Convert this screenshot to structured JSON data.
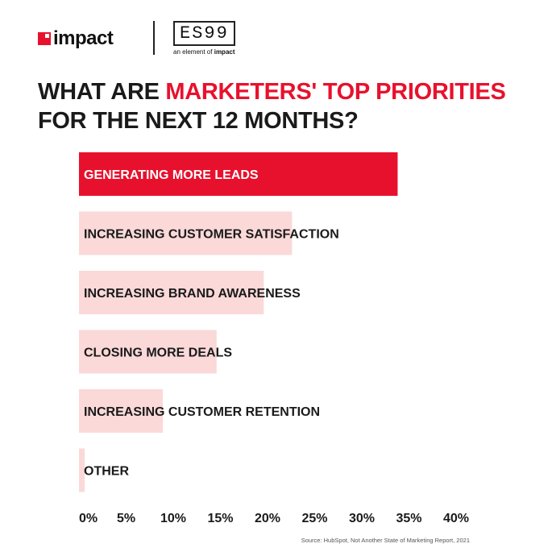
{
  "header": {
    "impact_logo_text": "impact",
    "es99_text": "ES99",
    "es99_tagline_prefix": "an element of",
    "es99_tagline_brand": "impact"
  },
  "title": {
    "part1": "WHAT ARE ",
    "accent": "MARKETERS' TOP PRIORITIES",
    "part2": "FOR THE NEXT 12 MONTHS?"
  },
  "colors": {
    "accent": "#e8112d",
    "bar_light": "#fbd9d9",
    "text": "#1a1a1a"
  },
  "chart_data": {
    "type": "bar",
    "orientation": "horizontal",
    "categories": [
      "GENERATING MORE LEADS",
      "INCREASING CUSTOMER SATISFACTION",
      "INCREASING BRAND AWARENESS",
      "CLOSING MORE DEALS",
      "INCREASING CUSTOMER RETENTION",
      "OTHER"
    ],
    "values": [
      33.8,
      22.6,
      19.6,
      14.6,
      8.9,
      0.6
    ],
    "highlight_index": 0,
    "xlim": [
      0,
      40
    ],
    "xticks": [
      0,
      5,
      10,
      15,
      20,
      25,
      30,
      35,
      40
    ],
    "xtick_labels": [
      "0%",
      "5%",
      "10%",
      "15%",
      "20%",
      "25%",
      "30%",
      "35%",
      "40%"
    ],
    "grid": false
  },
  "source": "Source: HubSpot, Not Another State of Marketing Report, 2021"
}
